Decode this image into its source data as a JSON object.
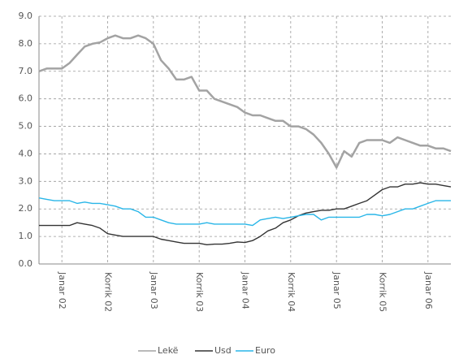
{
  "chart_data": {
    "type": "line",
    "categories": [
      null,
      null,
      null,
      "Janar 02",
      null,
      null,
      null,
      null,
      null,
      "Korrik 02",
      null,
      null,
      null,
      null,
      null,
      "Janar 03",
      null,
      null,
      null,
      null,
      null,
      "Korrik 03",
      null,
      null,
      null,
      null,
      null,
      "Janar 04",
      null,
      null,
      null,
      null,
      null,
      "Korrik 04",
      null,
      null,
      null,
      null,
      null,
      "Janar 05",
      null,
      null,
      null,
      null,
      null,
      "Korrik 05",
      null,
      null,
      null,
      null,
      null,
      "Janar 06",
      null,
      null,
      null
    ],
    "series": [
      {
        "name": "Lekë",
        "color": "#a3a3a3",
        "values": [
          7.0,
          7.1,
          7.1,
          7.1,
          7.3,
          7.6,
          7.9,
          8.0,
          8.05,
          8.2,
          8.3,
          8.2,
          8.2,
          8.3,
          8.2,
          8.0,
          7.4,
          7.1,
          6.7,
          6.7,
          6.8,
          6.3,
          6.3,
          6.0,
          5.9,
          5.8,
          5.7,
          5.5,
          5.4,
          5.4,
          5.3,
          5.2,
          5.2,
          5.0,
          5.0,
          4.9,
          4.7,
          4.4,
          4.0,
          3.5,
          4.1,
          3.9,
          4.4,
          4.5,
          4.5,
          4.5,
          4.4,
          4.6,
          4.5,
          4.4,
          4.3,
          4.3,
          4.2,
          4.2,
          4.1
        ]
      },
      {
        "name": "Usd",
        "color": "#333333",
        "values": [
          1.4,
          1.4,
          1.4,
          1.4,
          1.4,
          1.5,
          1.45,
          1.4,
          1.3,
          1.1,
          1.05,
          1.0,
          1.0,
          1.0,
          1.0,
          1.0,
          0.9,
          0.85,
          0.8,
          0.75,
          0.75,
          0.75,
          0.7,
          0.72,
          0.72,
          0.75,
          0.8,
          0.78,
          0.85,
          1.0,
          1.2,
          1.3,
          1.5,
          1.6,
          1.75,
          1.85,
          1.9,
          1.95,
          1.95,
          2.0,
          2.0,
          2.1,
          2.2,
          2.3,
          2.5,
          2.7,
          2.8,
          2.8,
          2.9,
          2.9,
          2.95,
          2.9,
          2.9,
          2.85,
          2.8
        ]
      },
      {
        "name": "Euro",
        "color": "#29b6e8",
        "values": [
          2.4,
          2.35,
          2.3,
          2.3,
          2.3,
          2.2,
          2.25,
          2.2,
          2.2,
          2.15,
          2.1,
          2.0,
          2.0,
          1.9,
          1.7,
          1.7,
          1.6,
          1.5,
          1.45,
          1.45,
          1.45,
          1.45,
          1.5,
          1.45,
          1.45,
          1.45,
          1.45,
          1.45,
          1.4,
          1.6,
          1.65,
          1.7,
          1.65,
          1.7,
          1.75,
          1.8,
          1.8,
          1.6,
          1.7,
          1.7,
          1.7,
          1.7,
          1.7,
          1.8,
          1.8,
          1.75,
          1.8,
          1.9,
          2.0,
          2.0,
          2.1,
          2.2,
          2.3,
          2.3,
          2.3
        ]
      }
    ],
    "ylim": [
      0,
      9
    ],
    "yticks": [
      {
        "value": 0,
        "label": "0.0"
      },
      {
        "value": 1,
        "label": "1.0"
      },
      {
        "value": 2,
        "label": "2.0"
      },
      {
        "value": 3,
        "label": "3.0"
      },
      {
        "value": 4,
        "label": "4.0"
      },
      {
        "value": 5,
        "label": "5.0"
      },
      {
        "value": 6,
        "label": "6.0"
      },
      {
        "value": 7,
        "label": "7.0"
      },
      {
        "value": 8,
        "label": "8.0"
      },
      {
        "value": 9,
        "label": "9.0"
      }
    ],
    "grid": true,
    "legend": "bottom"
  }
}
